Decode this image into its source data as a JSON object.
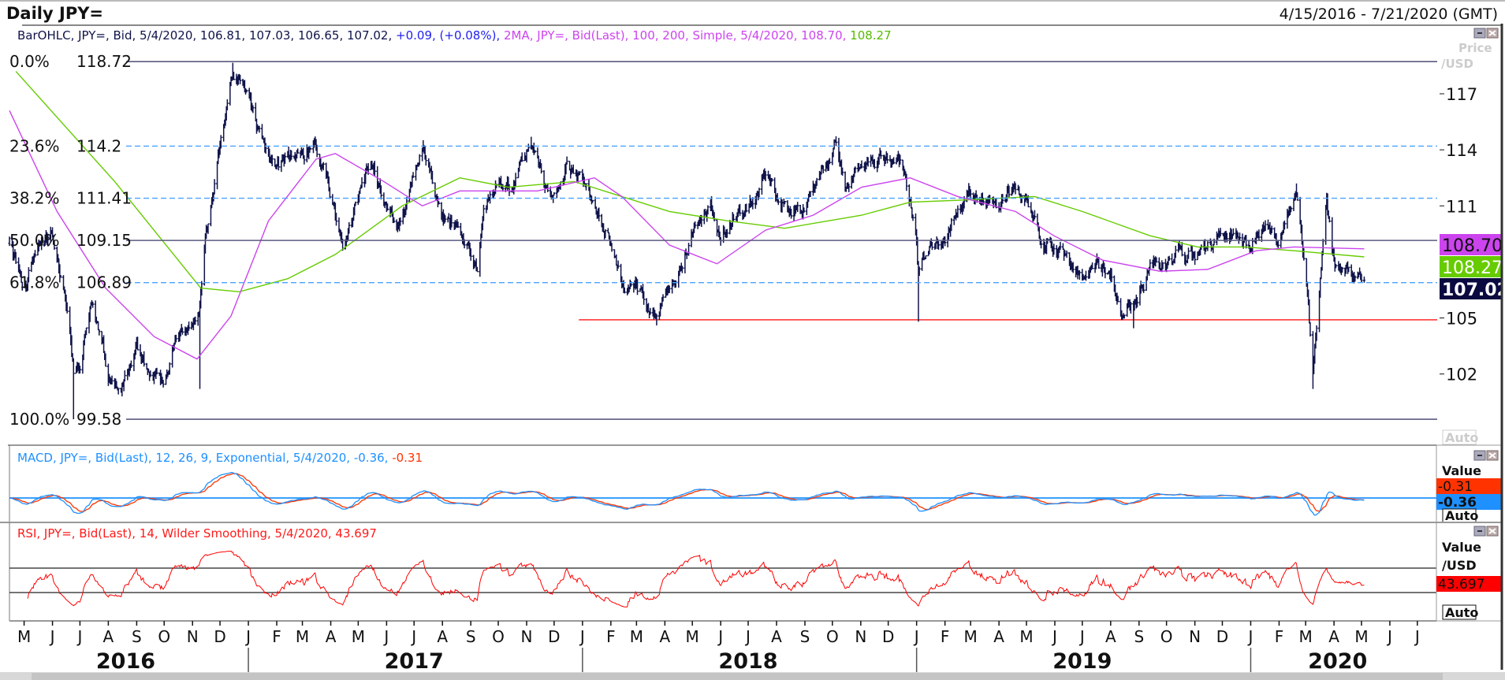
{
  "header": {
    "title": "Daily JPY=",
    "date_range": "4/15/2016 - 7/21/2020 (GMT)"
  },
  "legend": {
    "ohlc": "BarOHLC, JPY=, Bid, 5/4/2020, 106.81, 107.03, 106.65, 107.02,",
    "change": " +0.09, (+0.08%),",
    "ma": " 2MA, JPY=, Bid(Last),  100, 200, Simple, 5/4/2020, 108.70,",
    "ma200": " 108.27"
  },
  "price_axis": {
    "unit_line1": "Price",
    "unit_line2": "/USD",
    "auto_label": "Auto",
    "ticks": [
      "117",
      "114",
      "111",
      "105",
      "102"
    ],
    "tags": {
      "ma100": "108.70",
      "ma200": "108.27",
      "last": "107.02"
    }
  },
  "macd_panel": {
    "legend_main": "MACD, JPY=, Bid(Last),  12, 26, 9, Exponential, 5/4/2020, -0.36,",
    "legend_signal": " -0.31",
    "value_label": "Value",
    "signal_value": "-0.31",
    "macd_value": "-0.36",
    "auto_label": "Auto"
  },
  "rsi_panel": {
    "legend": "RSI, JPY=, Bid(Last),  14, Wilder Smoothing, 5/4/2020, 43.697",
    "value_label": "Value",
    "unit_label": "/USD",
    "value": "43.697",
    "auto_label": "Auto"
  },
  "time_axis": {
    "start_month": "2016-05",
    "months": [
      "M",
      "J",
      "J",
      "A",
      "S",
      "O",
      "N",
      "D",
      "J",
      "F",
      "M",
      "A",
      "M",
      "J",
      "J",
      "A",
      "S",
      "O",
      "N",
      "D",
      "J",
      "F",
      "M",
      "A",
      "M",
      "J",
      "J",
      "A",
      "S",
      "O",
      "N",
      "D",
      "J",
      "F",
      "M",
      "A",
      "M",
      "J",
      "J",
      "A",
      "S",
      "O",
      "N",
      "D",
      "J",
      "F",
      "M",
      "A",
      "M",
      "J",
      "J"
    ],
    "years": [
      {
        "label": "2016",
        "center": "2016-08-20"
      },
      {
        "label": "2017",
        "center": "2017-07-01"
      },
      {
        "label": "2018",
        "center": "2018-07-01"
      },
      {
        "label": "2019",
        "center": "2019-07-01"
      },
      {
        "label": "2020",
        "center": "2020-04-05"
      }
    ]
  },
  "colors": {
    "bars": "#10144a",
    "ma100": "#cc44ee",
    "ma200": "#66cc00",
    "fib_dashed": "#4aa3ff",
    "fib_solid": "#5a5a80",
    "support": "#ff2a2a",
    "macd": "#1e90ff",
    "signal": "#ff3300",
    "rsi": "#ff0000",
    "last_tag": "#0a0a40"
  },
  "chart_data": {
    "type": "ohlc",
    "title": "Daily JPY=",
    "date_range": [
      "2016-04-15",
      "2020-07-21"
    ],
    "last_bar": {
      "date": "2020-05-04",
      "open": 106.81,
      "high": 107.03,
      "low": 106.65,
      "close": 107.02,
      "change": 0.09,
      "change_pct": 0.08
    },
    "ylim": [
      98.4,
      119.7
    ],
    "y_ticks": [
      117,
      114,
      111,
      105,
      102
    ],
    "grid": false,
    "closes": [
      [
        "2016-04-15",
        109.0
      ],
      [
        "2016-05-01",
        106.5
      ],
      [
        "2016-05-15",
        108.8
      ],
      [
        "2016-06-01",
        109.5
      ],
      [
        "2016-06-15",
        106.0
      ],
      [
        "2016-06-24",
        102.2
      ],
      [
        "2016-07-01",
        102.5
      ],
      [
        "2016-07-15",
        106.0
      ],
      [
        "2016-08-01",
        102.0
      ],
      [
        "2016-08-15",
        100.8
      ],
      [
        "2016-09-01",
        103.5
      ],
      [
        "2016-09-15",
        102.0
      ],
      [
        "2016-10-01",
        101.5
      ],
      [
        "2016-10-15",
        104.2
      ],
      [
        "2016-11-01",
        104.5
      ],
      [
        "2016-11-08",
        105.0
      ],
      [
        "2016-11-15",
        109.0
      ],
      [
        "2016-12-01",
        114.0
      ],
      [
        "2016-12-15",
        118.0
      ],
      [
        "2017-01-01",
        117.0
      ],
      [
        "2017-01-15",
        114.5
      ],
      [
        "2017-02-01",
        113.0
      ],
      [
        "2017-02-15",
        113.8
      ],
      [
        "2017-03-01",
        113.5
      ],
      [
        "2017-03-15",
        114.5
      ],
      [
        "2017-04-01",
        111.5
      ],
      [
        "2017-04-15",
        108.6
      ],
      [
        "2017-05-01",
        111.5
      ],
      [
        "2017-05-15",
        113.5
      ],
      [
        "2017-06-01",
        111.0
      ],
      [
        "2017-06-15",
        110.0
      ],
      [
        "2017-07-01",
        112.5
      ],
      [
        "2017-07-11",
        114.3
      ],
      [
        "2017-08-01",
        110.5
      ],
      [
        "2017-08-15",
        110.0
      ],
      [
        "2017-09-08",
        107.6
      ],
      [
        "2017-09-15",
        110.5
      ],
      [
        "2017-10-01",
        112.5
      ],
      [
        "2017-10-15",
        112.0
      ],
      [
        "2017-11-06",
        114.5
      ],
      [
        "2017-11-15",
        113.0
      ],
      [
        "2017-11-27",
        111.2
      ],
      [
        "2017-12-15",
        113.0
      ],
      [
        "2018-01-01",
        112.5
      ],
      [
        "2018-01-15",
        111.0
      ],
      [
        "2018-02-01",
        109.0
      ],
      [
        "2018-02-15",
        106.5
      ],
      [
        "2018-03-01",
        106.8
      ],
      [
        "2018-03-23",
        104.8
      ],
      [
        "2018-04-01",
        106.0
      ],
      [
        "2018-04-15",
        107.5
      ],
      [
        "2018-05-01",
        109.5
      ],
      [
        "2018-05-21",
        111.0
      ],
      [
        "2018-06-01",
        109.3
      ],
      [
        "2018-06-15",
        110.5
      ],
      [
        "2018-07-01",
        110.7
      ],
      [
        "2018-07-18",
        112.8
      ],
      [
        "2018-08-01",
        111.5
      ],
      [
        "2018-08-15",
        110.7
      ],
      [
        "2018-09-01",
        111.0
      ],
      [
        "2018-09-15",
        112.0
      ],
      [
        "2018-10-04",
        114.3
      ],
      [
        "2018-10-15",
        112.2
      ],
      [
        "2018-11-01",
        113.0
      ],
      [
        "2018-11-15",
        113.5
      ],
      [
        "2018-12-01",
        113.5
      ],
      [
        "2018-12-15",
        113.3
      ],
      [
        "2018-12-31",
        110.0
      ],
      [
        "2019-01-03",
        107.5
      ],
      [
        "2019-01-15",
        108.8
      ],
      [
        "2019-02-01",
        109.5
      ],
      [
        "2019-02-15",
        110.5
      ],
      [
        "2019-03-01",
        111.8
      ],
      [
        "2019-03-15",
        111.5
      ],
      [
        "2019-04-01",
        111.0
      ],
      [
        "2019-04-15",
        112.0
      ],
      [
        "2019-05-01",
        111.5
      ],
      [
        "2019-05-15",
        109.5
      ],
      [
        "2019-06-01",
        108.5
      ],
      [
        "2019-06-15",
        108.2
      ],
      [
        "2019-06-25",
        107.2
      ],
      [
        "2019-07-15",
        108.0
      ],
      [
        "2019-08-01",
        107.5
      ],
      [
        "2019-08-12",
        105.3
      ],
      [
        "2019-08-26",
        105.5
      ],
      [
        "2019-09-15",
        108.0
      ],
      [
        "2019-10-01",
        107.8
      ],
      [
        "2019-10-15",
        108.5
      ],
      [
        "2019-11-01",
        108.2
      ],
      [
        "2019-11-15",
        108.8
      ],
      [
        "2019-12-01",
        109.5
      ],
      [
        "2019-12-15",
        109.3
      ],
      [
        "2020-01-01",
        108.7
      ],
      [
        "2020-01-15",
        110.0
      ],
      [
        "2020-02-01",
        108.8
      ],
      [
        "2020-02-20",
        112.0
      ],
      [
        "2020-03-01",
        107.5
      ],
      [
        "2020-03-09",
        102.0
      ],
      [
        "2020-03-24",
        111.3
      ],
      [
        "2020-04-01",
        107.8
      ],
      [
        "2020-04-15",
        107.5
      ],
      [
        "2020-05-04",
        107.02
      ]
    ],
    "extremes": [
      [
        "2016-06-24",
        "low",
        99.58
      ],
      [
        "2016-11-09",
        "low",
        101.2
      ],
      [
        "2016-12-15",
        "high",
        118.66
      ],
      [
        "2017-11-06",
        "high",
        114.7
      ],
      [
        "2018-03-23",
        "low",
        104.6
      ],
      [
        "2018-10-04",
        "high",
        114.5
      ],
      [
        "2019-01-03",
        "low",
        104.8
      ],
      [
        "2019-08-26",
        "low",
        104.45
      ],
      [
        "2020-02-20",
        "high",
        112.2
      ],
      [
        "2020-03-09",
        "low",
        101.2
      ],
      [
        "2020-03-24",
        "high",
        111.7
      ]
    ],
    "ma100": [
      [
        "2016-04-15",
        116.1
      ],
      [
        "2016-06-06",
        110.7
      ],
      [
        "2016-07-29",
        106.6
      ],
      [
        "2016-09-20",
        104.0
      ],
      [
        "2016-11-06",
        102.8
      ],
      [
        "2016-12-13",
        105.1
      ],
      [
        "2017-01-23",
        110.2
      ],
      [
        "2017-03-16",
        113.5
      ],
      [
        "2017-04-06",
        113.8
      ],
      [
        "2017-05-29",
        112.3
      ],
      [
        "2017-07-10",
        111.0
      ],
      [
        "2017-08-20",
        111.8
      ],
      [
        "2017-11-13",
        111.8
      ],
      [
        "2018-01-14",
        112.5
      ],
      [
        "2018-02-13",
        111.5
      ],
      [
        "2018-04-06",
        108.9
      ],
      [
        "2018-05-28",
        107.9
      ],
      [
        "2018-07-20",
        109.7
      ],
      [
        "2018-09-10",
        110.5
      ],
      [
        "2018-11-02",
        112.0
      ],
      [
        "2018-12-25",
        112.5
      ],
      [
        "2019-02-15",
        111.5
      ],
      [
        "2019-04-19",
        110.7
      ],
      [
        "2019-05-31",
        109.4
      ],
      [
        "2019-07-23",
        108.1
      ],
      [
        "2019-09-24",
        107.5
      ],
      [
        "2019-11-15",
        107.6
      ],
      [
        "2020-01-07",
        108.6
      ],
      [
        "2020-02-17",
        108.8
      ],
      [
        "2020-05-04",
        108.7
      ]
    ],
    "ma200": [
      [
        "2016-04-22",
        118.2
      ],
      [
        "2016-08-08",
        112.3
      ],
      [
        "2016-11-10",
        106.6
      ],
      [
        "2016-12-22",
        106.4
      ],
      [
        "2017-02-13",
        107.1
      ],
      [
        "2017-04-06",
        108.4
      ],
      [
        "2017-06-18",
        111.0
      ],
      [
        "2017-08-20",
        112.5
      ],
      [
        "2017-10-12",
        112.0
      ],
      [
        "2017-12-23",
        112.3
      ],
      [
        "2018-02-13",
        111.5
      ],
      [
        "2018-04-06",
        110.7
      ],
      [
        "2018-06-08",
        110.2
      ],
      [
        "2018-08-10",
        109.8
      ],
      [
        "2018-11-02",
        110.5
      ],
      [
        "2018-12-25",
        111.2
      ],
      [
        "2019-02-15",
        111.3
      ],
      [
        "2019-05-10",
        111.5
      ],
      [
        "2019-07-01",
        110.7
      ],
      [
        "2019-09-13",
        109.4
      ],
      [
        "2019-11-04",
        108.8
      ],
      [
        "2019-12-26",
        108.8
      ],
      [
        "2020-02-17",
        108.6
      ],
      [
        "2020-05-04",
        108.27
      ]
    ],
    "fib_levels": [
      {
        "pct": "0.0%",
        "label": "118.72",
        "value": 118.72,
        "style": "solid"
      },
      {
        "pct": "23.6%",
        "label": "114.2",
        "value": 114.2,
        "style": "dashed"
      },
      {
        "pct": "38.2%",
        "label": "111.41",
        "value": 111.41,
        "style": "dashed"
      },
      {
        "pct": "50.0%",
        "label": "109.15",
        "value": 109.15,
        "style": "solid"
      },
      {
        "pct": "61.8%",
        "label": "106.89",
        "value": 106.89,
        "style": "dashed"
      },
      {
        "pct": "100.0%",
        "label": "99.58",
        "value": 99.58,
        "style": "solid"
      }
    ],
    "support_line": {
      "value": 104.9,
      "from": "2017-12-28"
    },
    "macd": {
      "fast": 12,
      "slow": 26,
      "signal": 9,
      "last_macd": -0.36,
      "last_signal": -0.31
    },
    "rsi": {
      "period": 14,
      "last": 43.697,
      "bands": [
        70,
        30
      ]
    }
  }
}
